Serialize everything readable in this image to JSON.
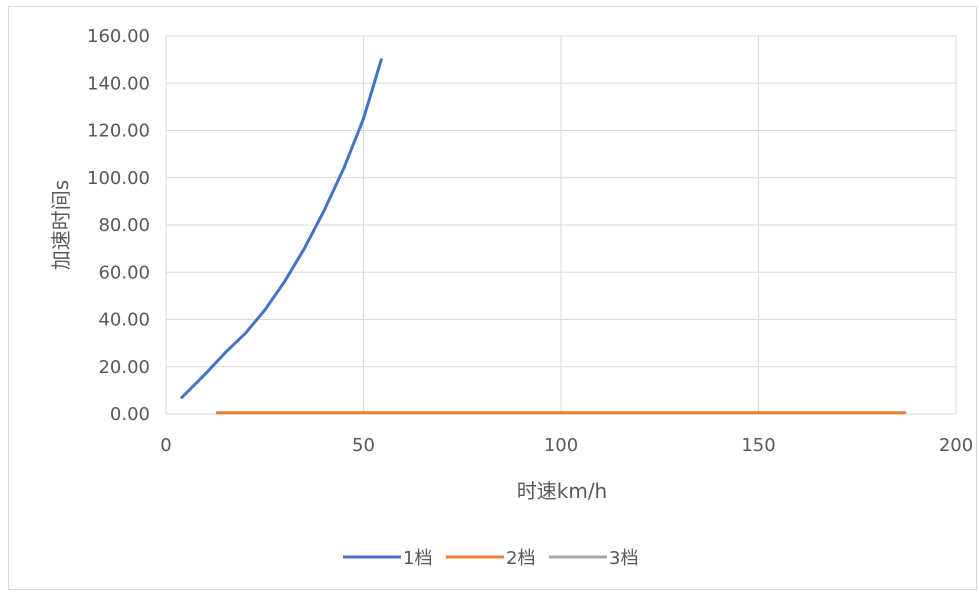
{
  "chart_data": {
    "type": "line",
    "title": "",
    "xlabel": "时速km/h",
    "ylabel": "加速时间s",
    "xlim": [
      0,
      200
    ],
    "ylim": [
      0,
      160
    ],
    "x_ticks": [
      "0",
      "50",
      "100",
      "150",
      "200"
    ],
    "y_ticks": [
      "0.00",
      "20.00",
      "40.00",
      "60.00",
      "80.00",
      "100.00",
      "120.00",
      "140.00",
      "160.00"
    ],
    "grid": true,
    "legend_position": "bottom",
    "series": [
      {
        "name": "1档",
        "color": "#4472c4",
        "x": [
          4,
          10,
          15,
          20,
          25,
          30,
          35,
          40,
          45,
          50,
          54.5
        ],
        "y": [
          7,
          17,
          26,
          34,
          44,
          56,
          70,
          86,
          104,
          125,
          150
        ]
      },
      {
        "name": "2档",
        "color": "#ed7d31",
        "x": [
          13,
          187
        ],
        "y": [
          0.5,
          0.5
        ]
      },
      {
        "name": "3档",
        "color": "#a5a5a5",
        "x": [],
        "y": []
      }
    ]
  }
}
